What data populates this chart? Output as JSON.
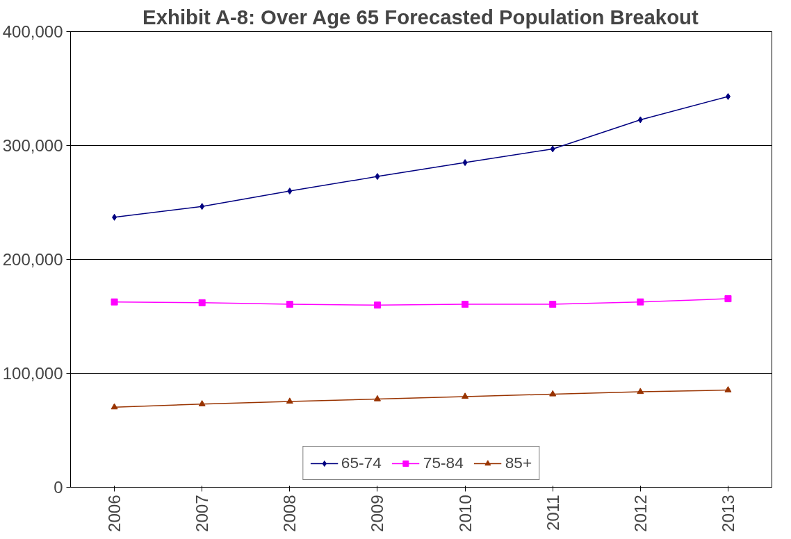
{
  "chart_data": {
    "type": "line",
    "title": "Exhibit A-8: Over Age 65 Forecasted Population Breakout",
    "categories": [
      "2006",
      "2007",
      "2008",
      "2009",
      "2010",
      "2011",
      "2012",
      "2013"
    ],
    "series": [
      {
        "name": "65-74",
        "color": "#000080",
        "marker": "diamond",
        "values": [
          237000,
          246500,
          260000,
          272800,
          285000,
          297000,
          322600,
          343000
        ]
      },
      {
        "name": "75-84",
        "color": "#ff00ff",
        "marker": "square",
        "values": [
          162700,
          162000,
          160600,
          159900,
          160600,
          160600,
          162700,
          165500
        ]
      },
      {
        "name": "85+",
        "color": "#993300",
        "marker": "triangle",
        "values": [
          70300,
          73000,
          75300,
          77400,
          79600,
          81700,
          83800,
          85300
        ]
      }
    ],
    "ylim": [
      0,
      400000
    ],
    "yticks": [
      0,
      {
        "value": 100000,
        "label": "100,000"
      },
      {
        "value": 200000,
        "label": "200,000"
      },
      {
        "value": 300000,
        "label": "300,000"
      },
      {
        "value": 400000,
        "label": "400,000"
      }
    ],
    "grid": "y",
    "legend": "bottom",
    "line_style": "solid"
  }
}
